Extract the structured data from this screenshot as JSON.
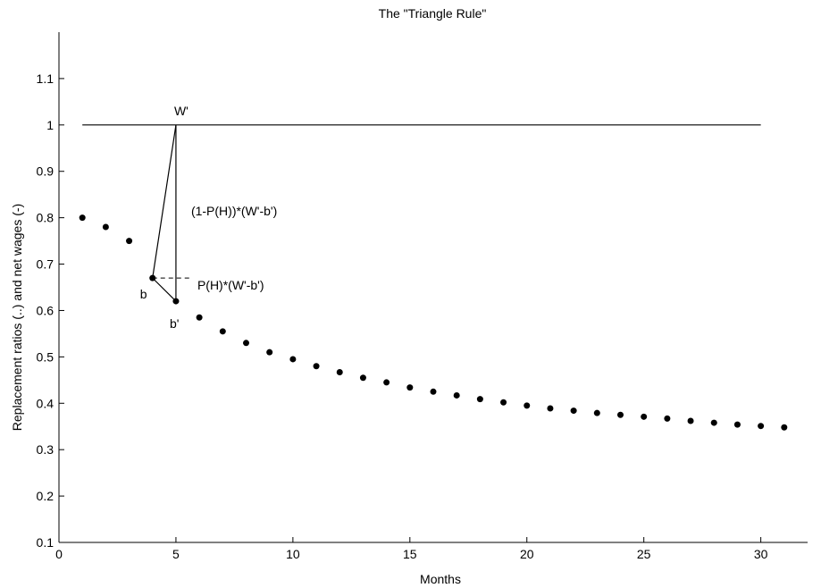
{
  "chart_data": {
    "type": "scatter",
    "title": "The \"Triangle Rule\"",
    "xlabel": "Months",
    "ylabel": "Replacement ratios (..) and net wages (-)",
    "xlim": [
      0,
      32
    ],
    "ylim": [
      0.1,
      1.2
    ],
    "xticks": [
      0,
      5,
      10,
      15,
      20,
      25,
      30
    ],
    "yticks": [
      0.1,
      0.2,
      0.3,
      0.4,
      0.5,
      0.6,
      0.7,
      0.8,
      0.9,
      1,
      1.1
    ],
    "xtick_labels": [
      "0",
      "5",
      "10",
      "15",
      "20",
      "25",
      "30"
    ],
    "ytick_labels": [
      "0.1",
      "0.2",
      "0.3",
      "0.4",
      "0.5",
      "0.6",
      "0.7",
      "0.8",
      "0.9",
      "1",
      "1.1"
    ],
    "grid": false,
    "series": [
      {
        "style": "dots",
        "x": [
          1,
          2,
          3,
          4,
          5,
          6,
          7,
          8,
          9,
          10,
          11,
          12,
          13,
          14,
          15,
          16,
          17,
          18,
          19,
          20,
          21,
          22,
          23,
          24,
          25,
          26,
          27,
          28,
          29,
          30,
          31
        ],
        "y": [
          0.8,
          0.78,
          0.75,
          0.67,
          0.62,
          0.585,
          0.555,
          0.53,
          0.51,
          0.495,
          0.48,
          0.467,
          0.455,
          0.445,
          0.434,
          0.425,
          0.417,
          0.409,
          0.402,
          0.395,
          0.389,
          0.384,
          0.379,
          0.375,
          0.371,
          0.367,
          0.362,
          0.358,
          0.354,
          0.351,
          0.348
        ]
      },
      {
        "style": "line",
        "x": [
          1,
          30
        ],
        "y": [
          1,
          1
        ]
      }
    ],
    "annotations": [
      {
        "text": "W'",
        "x": 5,
        "y": 1
      },
      {
        "text": "(1-P(H))*(W'-b')",
        "x": 5,
        "y": 0.805
      },
      {
        "text": "P(H)*(W'-b')",
        "x": 5,
        "y": 0.645
      },
      {
        "text": "b",
        "x": 4,
        "y": 0.67
      },
      {
        "text": "b'",
        "x": 5,
        "y": 0.62
      }
    ],
    "triangle": {
      "w_point": [
        5,
        1
      ],
      "b_point": [
        4,
        0.67
      ],
      "b_prime_point": [
        5,
        0.62
      ],
      "dashed_to_x": 5.7
    }
  }
}
